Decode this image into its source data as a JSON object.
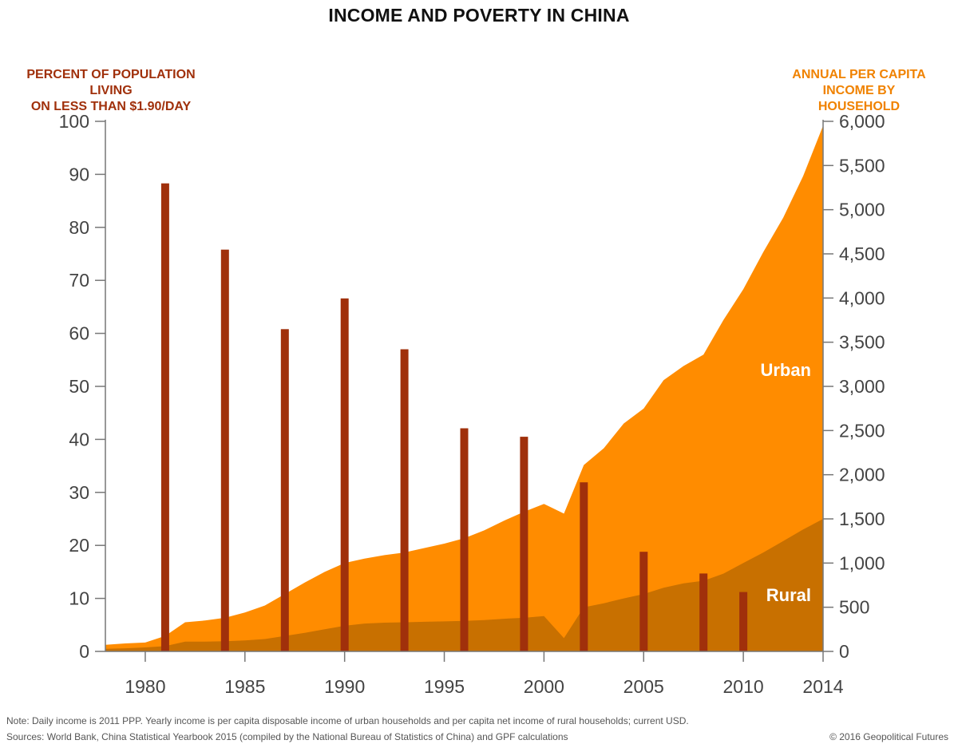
{
  "header": {
    "title": "INCOME AND POVERTY IN CHINA"
  },
  "footer": {
    "note": "Note: Daily income is 2011 PPP. Yearly income is per capita disposable income of urban households and per capita net income of rural households; current USD.",
    "sources": "Sources: World Bank, China Statistical Yearbook 2015 (compiled by the National Bureau of Statistics of China) and GPF calculations",
    "copyright": "© 2016 Geopolitical Futures"
  },
  "colors": {
    "urban": "#FF8C00",
    "rural": "#C87000",
    "poverty_bar": "#A0300B",
    "left_axis_title": "#A0300B",
    "right_axis_title": "#F08200",
    "tick_text": "#444444"
  },
  "chart_data": {
    "type": "area",
    "title": "INCOME AND POVERTY IN CHINA",
    "left_axis": {
      "label": "PERCENT OF POPULATION LIVING ON LESS THAN $1.90/DAY",
      "label_lines": [
        "PERCENT OF POPULATION LIVING",
        "ON LESS THAN $1.90/DAY"
      ],
      "range": [
        0,
        100
      ],
      "ticks": [
        0,
        10,
        20,
        30,
        40,
        50,
        60,
        70,
        80,
        90,
        100
      ],
      "tick_labels": [
        "0",
        "10",
        "20",
        "30",
        "40",
        "50",
        "60",
        "70",
        "80",
        "90",
        "100"
      ]
    },
    "right_axis": {
      "label": "ANNUAL PER CAPITA INCOME BY HOUSEHOLD",
      "label_lines": [
        "ANNUAL PER CAPITA",
        "INCOME BY HOUSEHOLD"
      ],
      "range": [
        0,
        6000
      ],
      "ticks": [
        0,
        500,
        1000,
        1500,
        2000,
        2500,
        3000,
        3500,
        4000,
        4500,
        5000,
        5500,
        6000
      ],
      "tick_labels": [
        "0",
        "500",
        "1,000",
        "1,500",
        "2,000",
        "2,500",
        "3,000",
        "3,500",
        "4,000",
        "4,500",
        "5,000",
        "5,500",
        "6,000"
      ]
    },
    "x_axis": {
      "range": [
        1978,
        2014
      ],
      "ticks": [
        1980,
        1985,
        1990,
        1995,
        2000,
        2005,
        2010,
        2014
      ],
      "tick_labels": [
        "1980",
        "1985",
        "1990",
        "1995",
        "2000",
        "2005",
        "2010",
        "2014"
      ]
    },
    "series": [
      {
        "name": "Urban",
        "kind": "area",
        "axis": "right",
        "x": [
          1978,
          1979,
          1980,
          1981,
          1982,
          1983,
          1984,
          1985,
          1986,
          1987,
          1988,
          1989,
          1990,
          1991,
          1992,
          1993,
          1994,
          1995,
          1996,
          1997,
          1998,
          1999,
          2000,
          2001,
          2002,
          2003,
          2004,
          2005,
          2006,
          2007,
          2008,
          2009,
          2010,
          2011,
          2012,
          2013,
          2014
        ],
        "y": [
          75,
          90,
          100,
          175,
          330,
          350,
          380,
          440,
          520,
          650,
          780,
          900,
          1000,
          1050,
          1090,
          1120,
          1170,
          1220,
          1280,
          1370,
          1480,
          1580,
          1670,
          1560,
          2110,
          2300,
          2580,
          2750,
          3070,
          3230,
          3360,
          3750,
          4100,
          4520,
          4910,
          5380,
          5950
        ]
      },
      {
        "name": "Rural",
        "kind": "area",
        "axis": "right",
        "x": [
          1978,
          1979,
          1980,
          1981,
          1982,
          1983,
          1984,
          1985,
          1986,
          1987,
          1988,
          1989,
          1990,
          1991,
          1992,
          1993,
          1994,
          1995,
          1996,
          1997,
          1998,
          1999,
          2000,
          2001,
          2002,
          2003,
          2004,
          2005,
          2006,
          2007,
          2008,
          2009,
          2010,
          2011,
          2012,
          2013,
          2014
        ],
        "y": [
          30,
          35,
          45,
          60,
          110,
          110,
          115,
          125,
          140,
          175,
          210,
          250,
          290,
          315,
          325,
          330,
          335,
          340,
          345,
          355,
          370,
          380,
          400,
          150,
          500,
          545,
          600,
          650,
          720,
          770,
          800,
          880,
          1000,
          1120,
          1250,
          1380,
          1500
        ]
      },
      {
        "name": "Poverty",
        "kind": "bar",
        "axis": "left",
        "x": [
          1981,
          1984,
          1987,
          1990,
          1993,
          1996,
          1999,
          2002,
          2005,
          2008,
          2010
        ],
        "y": [
          88.3,
          75.8,
          60.8,
          66.6,
          57.0,
          42.1,
          40.5,
          31.9,
          18.8,
          14.7,
          11.2
        ]
      }
    ],
    "labels": {
      "urban": "Urban",
      "rural": "Rural"
    }
  }
}
